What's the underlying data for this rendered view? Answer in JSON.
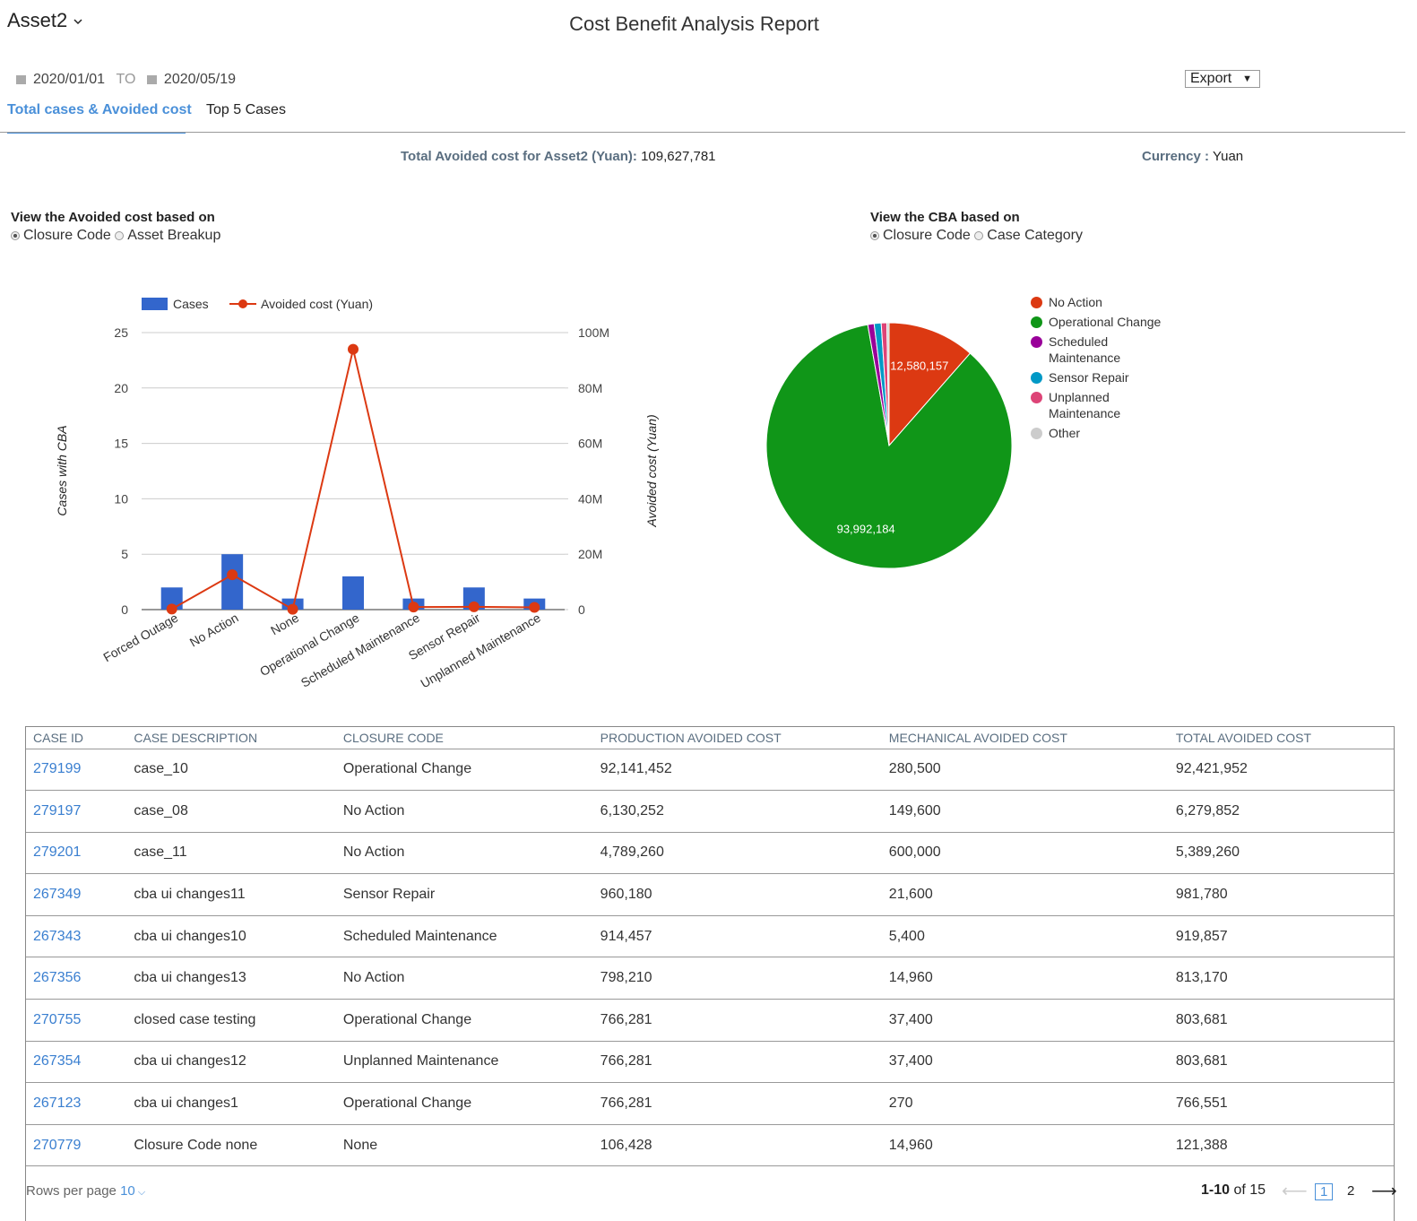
{
  "header": {
    "asset": "Asset2",
    "title": "Cost Benefit Analysis Report",
    "date_from": "2020/01/01",
    "date_sep": "TO",
    "date_to": "2020/05/19",
    "export": "Export",
    "tabs": [
      "Total cases & Avoided cost",
      "Top 5 Cases"
    ]
  },
  "summary": {
    "total_label": "Total Avoided cost for Asset2 (Yuan):",
    "total_value": "109,627,781",
    "currency_label": "Currency :",
    "currency_value": "Yuan"
  },
  "controls": {
    "left_title": "View the Avoided cost based on",
    "left_options": [
      "Closure Code",
      "Asset Breakup"
    ],
    "right_title": "View the CBA based on",
    "right_options": [
      "Closure Code",
      "Case Category"
    ]
  },
  "chart_data": [
    {
      "type": "combo",
      "categories": [
        "Forced Outage",
        "No Action",
        "None",
        "Operational Change",
        "Scheduled Maintenance",
        "Sensor Repair",
        "Unplanned Maintenance"
      ],
      "series": [
        {
          "name": "Cases",
          "color": "#3366cc",
          "values": [
            2,
            5,
            1,
            3,
            1,
            2,
            1
          ]
        },
        {
          "name": "Avoided cost (Yuan)",
          "color": "#dc3912",
          "axis": "y2",
          "values": [
            200000,
            12580157,
            121388,
            93992184,
            919857,
            1010514,
            803681
          ]
        }
      ],
      "y_label": "Cases with CBA",
      "y2_label": "Avoided cost (Yuan)",
      "ylim": [
        0,
        25
      ],
      "yticks": [
        0,
        5,
        10,
        15,
        20,
        25
      ],
      "y2lim": [
        0,
        100000000
      ],
      "y2ticks": [
        0,
        {
          "value": 20000000,
          "label": "20M"
        },
        {
          "value": 40000000,
          "label": "40M"
        },
        {
          "value": 60000000,
          "label": "60M"
        },
        {
          "value": 80000000,
          "label": "80M"
        },
        {
          "value": 100000000,
          "label": "100M"
        }
      ],
      "grid": true,
      "legend": "top"
    },
    {
      "type": "pie",
      "categories": [
        "No Action",
        "Operational Change",
        "Scheduled Maintenance",
        "Sensor Repair",
        "Unplanned Maintenance",
        "Other"
      ],
      "values": [
        12580157,
        93992184,
        919857,
        1010514,
        803681,
        321388
      ],
      "value_labels": [
        "12,580,157",
        "93,992,184",
        null,
        null,
        null,
        null
      ],
      "colors": [
        "#dc3912",
        "#109618",
        "#990099",
        "#0099c6",
        "#dd4477",
        "#cccccc"
      ],
      "legend": "right"
    }
  ],
  "table": {
    "columns": [
      "CASE ID",
      "CASE DESCRIPTION",
      "CLOSURE CODE",
      "PRODUCTION AVOIDED COST",
      "MECHANICAL AVOIDED COST",
      "TOTAL AVOIDED COST"
    ],
    "rows": [
      [
        "279199",
        "case_10",
        "Operational Change",
        "92,141,452",
        "280,500",
        "92,421,952"
      ],
      [
        "279197",
        "case_08",
        "No Action",
        "6,130,252",
        "149,600",
        "6,279,852"
      ],
      [
        "279201",
        "case_11",
        "No Action",
        "4,789,260",
        "600,000",
        "5,389,260"
      ],
      [
        "267349",
        "cba ui changes11",
        "Sensor Repair",
        "960,180",
        "21,600",
        "981,780"
      ],
      [
        "267343",
        "cba ui changes10",
        "Scheduled Maintenance",
        "914,457",
        "5,400",
        "919,857"
      ],
      [
        "267356",
        "cba ui changes13",
        "No Action",
        "798,210",
        "14,960",
        "813,170"
      ],
      [
        "270755",
        "closed case testing",
        "Operational Change",
        "766,281",
        "37,400",
        "803,681"
      ],
      [
        "267354",
        "cba ui changes12",
        "Unplanned Maintenance",
        "766,281",
        "37,400",
        "803,681"
      ],
      [
        "267123",
        "cba ui changes1",
        "Operational Change",
        "766,281",
        "270",
        "766,551"
      ],
      [
        "270779",
        "Closure Code none",
        "None",
        "106,428",
        "14,960",
        "121,388"
      ]
    ]
  },
  "pagination": {
    "rows_label": "Rows per page",
    "rows_value": "10",
    "range": "1-10",
    "of": "of 15",
    "pages": [
      "1",
      "2"
    ]
  }
}
